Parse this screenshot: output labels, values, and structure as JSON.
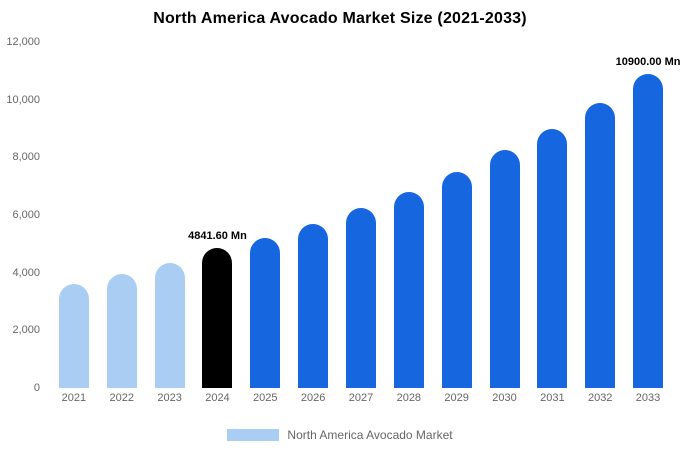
{
  "title": "North America Avocado Market Size (2021-2033)",
  "legend": {
    "label": "North America Avocado Market",
    "swatch_color": "#A9CDF3"
  },
  "colors": {
    "historical": "#A9CDF3",
    "base_year": "#000000",
    "forecast": "#1666E0"
  },
  "chart_data": {
    "type": "bar",
    "title": "North America Avocado Market Size (2021-2033)",
    "xlabel": "",
    "ylabel": "",
    "categories": [
      "2021",
      "2022",
      "2023",
      "2024",
      "2025",
      "2026",
      "2027",
      "2028",
      "2029",
      "2030",
      "2031",
      "2032",
      "2033"
    ],
    "values": [
      3600,
      3950,
      4350,
      4841.6,
      5200,
      5700,
      6250,
      6800,
      7500,
      8250,
      9000,
      9900,
      10900
    ],
    "bar_colors": [
      "#A9CDF3",
      "#A9CDF3",
      "#A9CDF3",
      "#000000",
      "#1666E0",
      "#1666E0",
      "#1666E0",
      "#1666E0",
      "#1666E0",
      "#1666E0",
      "#1666E0",
      "#1666E0",
      "#1666E0"
    ],
    "data_labels": {
      "2024": "4841.60 Mn",
      "2033": "10900.00 Mn"
    },
    "ylim": [
      0,
      12000
    ],
    "y_ticks": [
      0,
      2000,
      4000,
      6000,
      8000,
      10000,
      12000
    ],
    "y_tick_labels": [
      "0",
      "2,000",
      "4,000",
      "6,000",
      "8,000",
      "10,000",
      "12,000"
    ],
    "grid": false,
    "legend_position": "bottom",
    "legend_entries": [
      "North America Avocado Market"
    ]
  }
}
